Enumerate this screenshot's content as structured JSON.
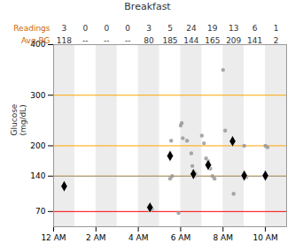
{
  "chart_data": {
    "type": "scatter",
    "title": "Breakfast",
    "xlim": [
      0,
      11
    ],
    "xticks": [
      {
        "value": 0,
        "label": "12 AM"
      },
      {
        "value": 2,
        "label": "2 AM"
      },
      {
        "value": 4,
        "label": "4 AM"
      },
      {
        "value": 6,
        "label": "6 AM"
      },
      {
        "value": 8,
        "label": "8 AM"
      },
      {
        "value": 10,
        "label": "10 AM"
      }
    ],
    "ylim": [
      40,
      400
    ],
    "yticks": [
      70,
      140,
      200,
      300,
      400
    ],
    "ylabel": "Glucose\n(mg/dL)",
    "series": [
      {
        "color": "#999999",
        "marker": "circle",
        "x": [
          0.5,
          4.5,
          4.65,
          5.5,
          5.6,
          5.9,
          5.5,
          5.55,
          6.0,
          6.05,
          6.1,
          6.3,
          6.5,
          6.55,
          6.6,
          6.65,
          6.7,
          7.0,
          7.1,
          7.2,
          7.3,
          7.4,
          7.5,
          7.6,
          8.0,
          8.1,
          8.5,
          9.0,
          9.1,
          10.0,
          10.1
        ],
        "values": [
          118,
          80,
          75,
          135,
          140,
          67,
          185,
          210,
          240,
          245,
          215,
          210,
          185,
          160,
          150,
          140,
          145,
          220,
          205,
          175,
          170,
          155,
          140,
          135,
          350,
          230,
          105,
          200,
          138,
          200,
          197
        ]
      },
      {
        "color": "#000000",
        "marker": "diamond",
        "x": [
          0.5,
          4.55,
          5.5,
          6.6,
          7.3,
          8.45,
          9.0,
          10.0
        ],
        "values": [
          120,
          78,
          180,
          144,
          162,
          209,
          141,
          141
        ]
      }
    ],
    "hlines": [
      {
        "value": 140,
        "color": "#FFA500"
      },
      {
        "value": 200,
        "color": "#FFA500"
      },
      {
        "value": 300,
        "color": "#FFA500"
      },
      {
        "value": 70,
        "color": "#ff0000"
      },
      {
        "value": 140,
        "color": "#999999"
      }
    ],
    "table": [
      {
        "label": "Readings",
        "values": [
          3,
          0,
          0,
          0,
          3,
          5,
          24,
          19,
          13,
          6,
          1
        ]
      },
      {
        "label": "Avg BG",
        "values": [
          "118",
          "--",
          "--",
          "--",
          "80",
          "185",
          "144",
          "165",
          "209",
          "141",
          "2"
        ]
      }
    ]
  }
}
